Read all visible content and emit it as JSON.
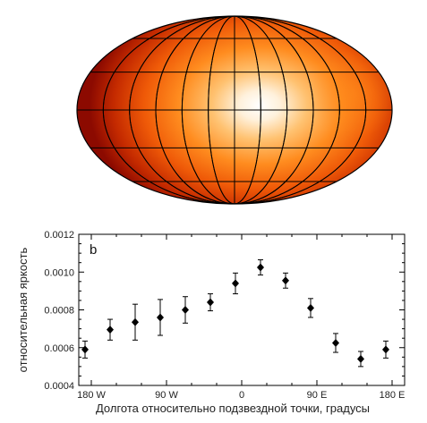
{
  "chart_data": [
    {
      "type": "heatmap",
      "projection": "mollweide",
      "description_of_map": "brightness map, brightest near centre, dark red edges",
      "grid": true,
      "colors": {
        "bright": "#ffffff",
        "mid": "#ff8c1a",
        "dark": "#8c0a00"
      }
    },
    {
      "type": "scatter",
      "panel_label": "b",
      "xlabel": "Долгота относительно подзвездной точки, градусы",
      "ylabel": "относительная яркость",
      "xlim": [
        -195,
        195
      ],
      "ylim": [
        0.0004,
        0.0012
      ],
      "xticks": [
        {
          "value": -180,
          "label": "180 W"
        },
        {
          "value": -90,
          "label": "90 W"
        },
        {
          "value": 0,
          "label": "0"
        },
        {
          "value": 90,
          "label": "90 E"
        },
        {
          "value": 180,
          "label": "180 E"
        }
      ],
      "yticks": [
        {
          "value": 0.0004,
          "label": "0.0004"
        },
        {
          "value": 0.0006,
          "label": "0.0006"
        },
        {
          "value": 0.0008,
          "label": "0.0008"
        },
        {
          "value": 0.001,
          "label": "0.0010"
        },
        {
          "value": 0.0012,
          "label": "0.0012"
        }
      ],
      "points": [
        {
          "x": -187.5,
          "y": 0.00059,
          "err": 4.5e-05
        },
        {
          "x": -157.5,
          "y": 0.000695,
          "err": 5.5e-05
        },
        {
          "x": -127.5,
          "y": 0.000735,
          "err": 9.5e-05
        },
        {
          "x": -97.5,
          "y": 0.00076,
          "err": 9.5e-05
        },
        {
          "x": -67.5,
          "y": 0.0008,
          "err": 7e-05
        },
        {
          "x": -37.5,
          "y": 0.00084,
          "err": 4.5e-05
        },
        {
          "x": -7.5,
          "y": 0.00094,
          "err": 5.5e-05
        },
        {
          "x": 22.5,
          "y": 0.001025,
          "err": 4e-05
        },
        {
          "x": 52.5,
          "y": 0.000955,
          "err": 4e-05
        },
        {
          "x": 82.5,
          "y": 0.00081,
          "err": 5e-05
        },
        {
          "x": 112.5,
          "y": 0.000625,
          "err": 5e-05
        },
        {
          "x": 142.5,
          "y": 0.00054,
          "err": 4e-05
        },
        {
          "x": 172.5,
          "y": 0.00059,
          "err": 4.5e-05
        }
      ],
      "colors": {
        "marker": "#000000",
        "frame": "#000000"
      }
    }
  ]
}
